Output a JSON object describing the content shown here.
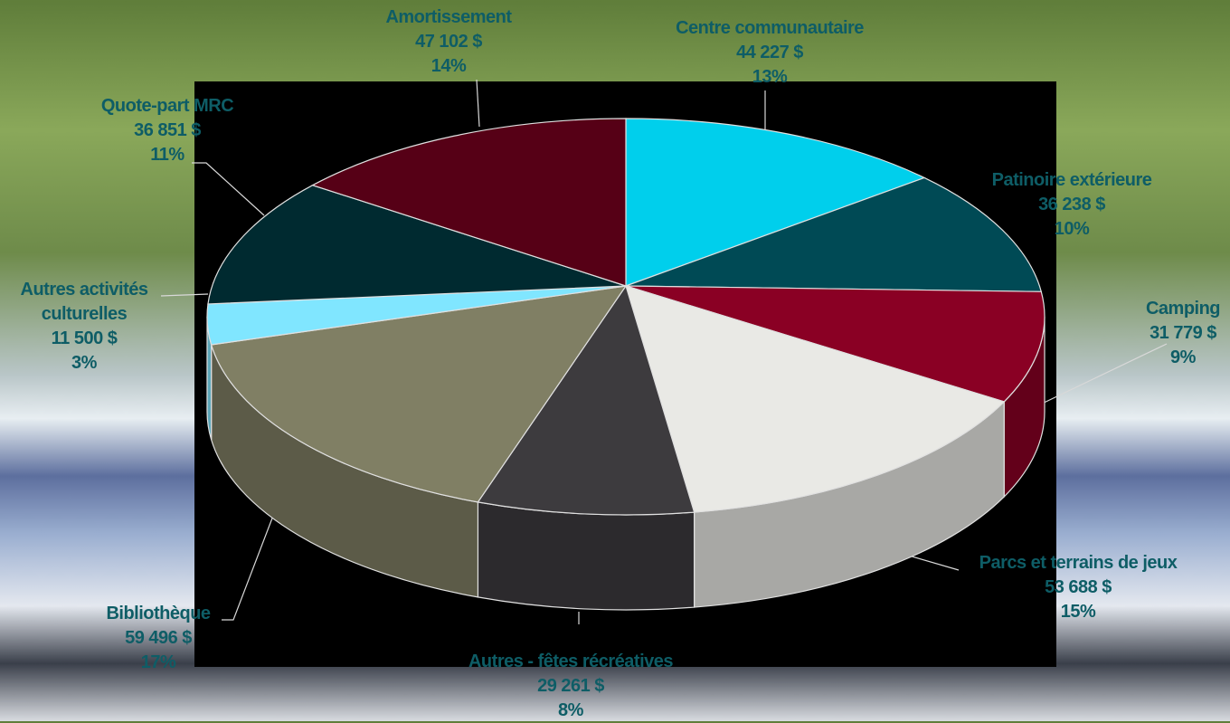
{
  "chart_data": {
    "type": "pie3d",
    "categories": [
      "Centre communautaire",
      "Patinoire extérieure",
      "Camping",
      "Parcs et terrains de jeux",
      "Autres - fêtes récréatives",
      "Bibliothèque",
      "Autres activités culturelles",
      "Quote-part MRC",
      "Amortissement"
    ],
    "values": [
      44227,
      36238,
      31779,
      53688,
      29261,
      59496,
      11500,
      36851,
      47102
    ],
    "value_labels": [
      "44 227 $",
      "36 238 $",
      "31 779 $",
      "53 688 $",
      "29 261 $",
      "59 496 $",
      "11 500 $",
      "36 851 $",
      "47 102 $"
    ],
    "percents": [
      13,
      10,
      9,
      15,
      8,
      17,
      3,
      11,
      14
    ],
    "percent_labels": [
      "13%",
      "10%",
      "9%",
      "15%",
      "8%",
      "17%",
      "3%",
      "11%",
      "14%"
    ],
    "colors": [
      "#00cfec",
      "#004a55",
      "#8a0024",
      "#e9e9e5",
      "#3d3b3e",
      "#807f64",
      "#80e6ff",
      "#002a30",
      "#560016"
    ]
  }
}
